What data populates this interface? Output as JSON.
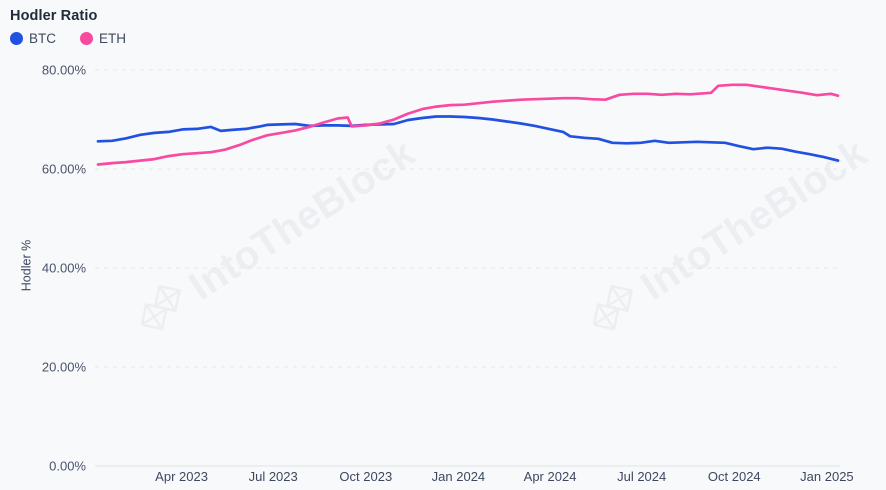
{
  "header": {
    "title": "Hodler Ratio"
  },
  "legend": {
    "items": [
      {
        "label": "BTC",
        "color": "#2151e0"
      },
      {
        "label": "ETH",
        "color": "#f74aa0"
      }
    ]
  },
  "watermark": {
    "text": "IntoTheBlock",
    "logo_icon": "intotheblock-logo"
  },
  "colors": {
    "background": "#f8f9fa",
    "btc_line": "#2151e0",
    "eth_line": "#f74aa0",
    "gridline": "#e4e6ea",
    "axis_line": "#e0e2e7",
    "tick_text": "#49536b",
    "title_text": "#222b3a"
  },
  "chart_data": {
    "type": "line",
    "title": "Hodler Ratio",
    "xlabel": "",
    "ylabel": "Hodler %",
    "ylim": [
      0,
      80
    ],
    "grid": "horizontal-dashed",
    "legend_position": "top-left",
    "x_range": [
      "2023-01-08",
      "2025-01-12"
    ],
    "y_ticks": [
      {
        "value": 80,
        "label": "80.00%"
      },
      {
        "value": 60,
        "label": "60.00%"
      },
      {
        "value": 40,
        "label": "40.00%"
      },
      {
        "value": 20,
        "label": "20.00%"
      },
      {
        "value": 0,
        "label": "0.00%"
      }
    ],
    "x_ticks": [
      {
        "date": "2023-04-01",
        "label": "Apr 2023"
      },
      {
        "date": "2023-07-01",
        "label": "Jul 2023"
      },
      {
        "date": "2023-10-01",
        "label": "Oct 2023"
      },
      {
        "date": "2024-01-01",
        "label": "Jan 2024"
      },
      {
        "date": "2024-04-01",
        "label": "Apr 2024"
      },
      {
        "date": "2024-07-01",
        "label": "Jul 2024"
      },
      {
        "date": "2024-10-01",
        "label": "Oct 2024"
      },
      {
        "date": "2025-01-01",
        "label": "Jan 2025"
      }
    ],
    "series": [
      {
        "name": "BTC",
        "color": "#2151e0",
        "points": [
          [
            "2023-01-08",
            65.6
          ],
          [
            "2023-01-22",
            65.7
          ],
          [
            "2023-02-05",
            66.2
          ],
          [
            "2023-02-19",
            66.9
          ],
          [
            "2023-03-05",
            67.3
          ],
          [
            "2023-03-19",
            67.5
          ],
          [
            "2023-04-02",
            68.0
          ],
          [
            "2023-04-16",
            68.1
          ],
          [
            "2023-04-30",
            68.5
          ],
          [
            "2023-05-10",
            67.7
          ],
          [
            "2023-05-21",
            67.9
          ],
          [
            "2023-06-04",
            68.1
          ],
          [
            "2023-06-18",
            68.6
          ],
          [
            "2023-06-25",
            68.9
          ],
          [
            "2023-07-09",
            69.0
          ],
          [
            "2023-07-23",
            69.1
          ],
          [
            "2023-08-06",
            68.7
          ],
          [
            "2023-08-20",
            68.8
          ],
          [
            "2023-09-03",
            68.8
          ],
          [
            "2023-09-17",
            68.7
          ],
          [
            "2023-10-01",
            68.9
          ],
          [
            "2023-10-15",
            69.0
          ],
          [
            "2023-10-29",
            69.1
          ],
          [
            "2023-11-12",
            69.9
          ],
          [
            "2023-11-26",
            70.3
          ],
          [
            "2023-12-10",
            70.6
          ],
          [
            "2023-12-24",
            70.6
          ],
          [
            "2024-01-07",
            70.5
          ],
          [
            "2024-01-21",
            70.3
          ],
          [
            "2024-02-04",
            70.0
          ],
          [
            "2024-02-18",
            69.6
          ],
          [
            "2024-03-03",
            69.2
          ],
          [
            "2024-03-17",
            68.7
          ],
          [
            "2024-03-31",
            68.1
          ],
          [
            "2024-04-14",
            67.5
          ],
          [
            "2024-04-21",
            66.6
          ],
          [
            "2024-05-05",
            66.3
          ],
          [
            "2024-05-19",
            66.1
          ],
          [
            "2024-06-02",
            65.3
          ],
          [
            "2024-06-16",
            65.2
          ],
          [
            "2024-06-30",
            65.3
          ],
          [
            "2024-07-14",
            65.7
          ],
          [
            "2024-07-28",
            65.3
          ],
          [
            "2024-08-11",
            65.4
          ],
          [
            "2024-08-25",
            65.5
          ],
          [
            "2024-09-08",
            65.4
          ],
          [
            "2024-09-22",
            65.3
          ],
          [
            "2024-10-06",
            64.6
          ],
          [
            "2024-10-20",
            64.0
          ],
          [
            "2024-11-03",
            64.3
          ],
          [
            "2024-11-17",
            64.1
          ],
          [
            "2024-12-01",
            63.5
          ],
          [
            "2024-12-15",
            63.0
          ],
          [
            "2024-12-29",
            62.4
          ],
          [
            "2025-01-12",
            61.7
          ]
        ]
      },
      {
        "name": "ETH",
        "color": "#f74aa0",
        "points": [
          [
            "2023-01-08",
            60.9
          ],
          [
            "2023-01-22",
            61.2
          ],
          [
            "2023-02-05",
            61.4
          ],
          [
            "2023-02-19",
            61.7
          ],
          [
            "2023-03-05",
            62.0
          ],
          [
            "2023-03-19",
            62.6
          ],
          [
            "2023-04-02",
            63.0
          ],
          [
            "2023-04-16",
            63.2
          ],
          [
            "2023-04-30",
            63.4
          ],
          [
            "2023-05-14",
            63.9
          ],
          [
            "2023-05-28",
            64.8
          ],
          [
            "2023-06-11",
            65.9
          ],
          [
            "2023-06-25",
            66.8
          ],
          [
            "2023-07-09",
            67.3
          ],
          [
            "2023-07-23",
            67.8
          ],
          [
            "2023-08-06",
            68.5
          ],
          [
            "2023-08-20",
            69.4
          ],
          [
            "2023-09-03",
            70.2
          ],
          [
            "2023-09-13",
            70.4
          ],
          [
            "2023-09-17",
            68.6
          ],
          [
            "2023-10-01",
            68.8
          ],
          [
            "2023-10-15",
            69.2
          ],
          [
            "2023-10-29",
            70.0
          ],
          [
            "2023-11-12",
            71.2
          ],
          [
            "2023-11-26",
            72.1
          ],
          [
            "2023-12-10",
            72.6
          ],
          [
            "2023-12-24",
            72.9
          ],
          [
            "2024-01-07",
            73.0
          ],
          [
            "2024-01-21",
            73.3
          ],
          [
            "2024-02-04",
            73.6
          ],
          [
            "2024-02-18",
            73.8
          ],
          [
            "2024-03-03",
            74.0
          ],
          [
            "2024-03-17",
            74.1
          ],
          [
            "2024-03-31",
            74.2
          ],
          [
            "2024-04-14",
            74.3
          ],
          [
            "2024-04-28",
            74.3
          ],
          [
            "2024-05-12",
            74.1
          ],
          [
            "2024-05-26",
            74.0
          ],
          [
            "2024-06-09",
            75.0
          ],
          [
            "2024-06-23",
            75.2
          ],
          [
            "2024-07-07",
            75.2
          ],
          [
            "2024-07-21",
            75.0
          ],
          [
            "2024-08-04",
            75.2
          ],
          [
            "2024-08-18",
            75.1
          ],
          [
            "2024-09-01",
            75.3
          ],
          [
            "2024-09-08",
            75.4
          ],
          [
            "2024-09-15",
            76.8
          ],
          [
            "2024-09-29",
            77.0
          ],
          [
            "2024-10-13",
            77.0
          ],
          [
            "2024-10-27",
            76.6
          ],
          [
            "2024-11-10",
            76.2
          ],
          [
            "2024-11-24",
            75.8
          ],
          [
            "2024-12-08",
            75.4
          ],
          [
            "2024-12-22",
            74.9
          ],
          [
            "2025-01-05",
            75.2
          ],
          [
            "2025-01-12",
            74.8
          ]
        ]
      }
    ]
  }
}
